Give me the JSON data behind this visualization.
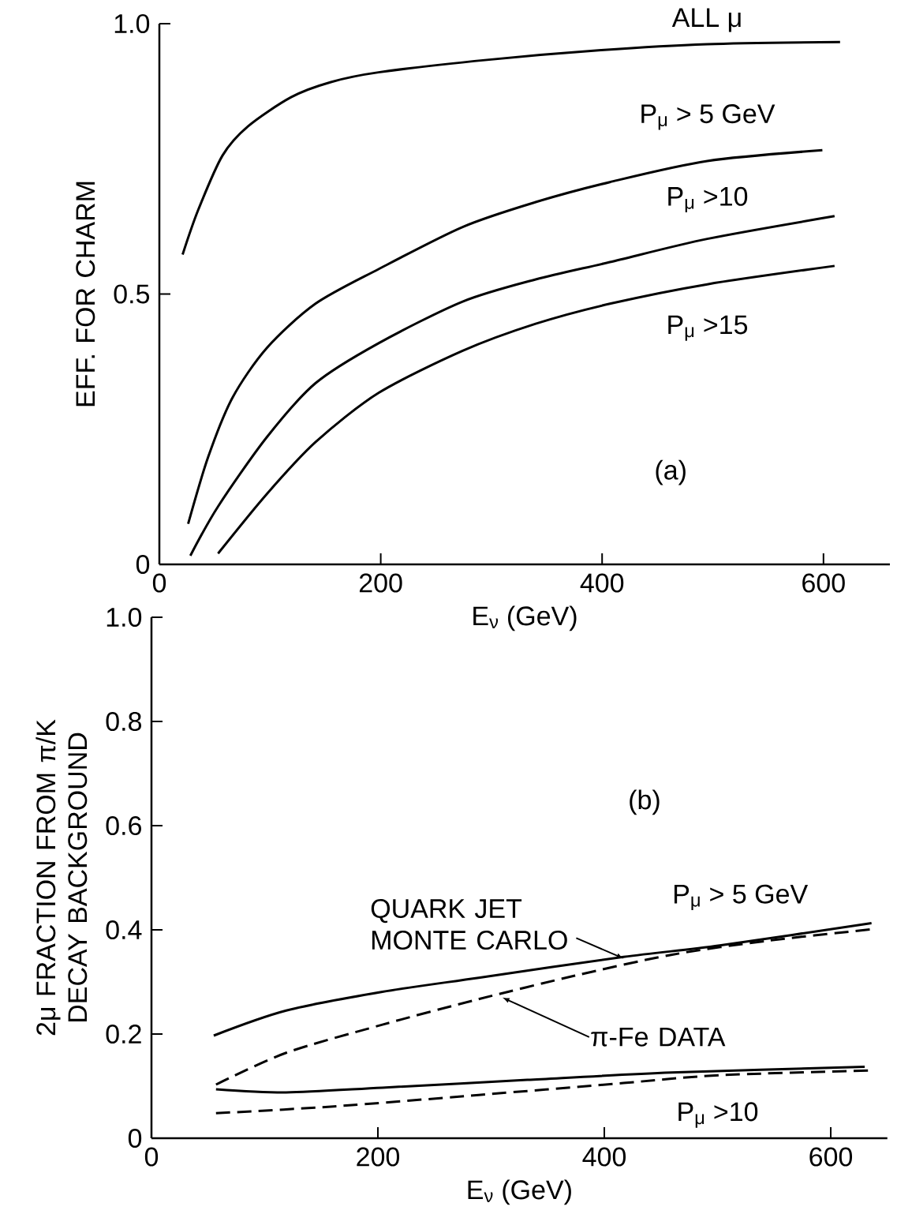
{
  "chart_data": [
    {
      "type": "line",
      "xlabel": "E$_{ν}$ (GeV)",
      "ylabel": "EFF. FOR CHARM",
      "xlim": [
        0,
        660
      ],
      "ylim": [
        0,
        1
      ],
      "xticks": [
        0,
        200,
        400,
        600
      ],
      "yticks": [
        0,
        0.5,
        {
          "value": 1,
          "label": "1.0"
        }
      ],
      "annotations": [
        "(a)"
      ],
      "series": [
        {
          "name": "ALL μ",
          "color": "#000000",
          "x": [
            21,
            35,
            57,
            80,
            119,
            155,
            198,
            296,
            399,
            495,
            615
          ],
          "values": [
            0.573,
            0.655,
            0.756,
            0.81,
            0.864,
            0.892,
            0.91,
            0.933,
            0.951,
            0.962,
            0.966
          ]
        },
        {
          "name": "P$_{μ}$ > 5 GeV",
          "color": "#000000",
          "x": [
            26,
            44,
            66,
            97,
            141,
            198,
            274,
            340,
            407,
            495,
            599
          ],
          "values": [
            0.075,
            0.198,
            0.308,
            0.4,
            0.482,
            0.546,
            0.624,
            0.67,
            0.707,
            0.746,
            0.766
          ]
        },
        {
          "name": "P$_{μ}$ >10",
          "color": "#000000",
          "x": [
            28,
            53,
            97,
            141,
            198,
            274,
            340,
            407,
            495,
            610
          ],
          "values": [
            0.016,
            0.107,
            0.235,
            0.335,
            0.409,
            0.486,
            0.527,
            0.559,
            0.602,
            0.644
          ]
        },
        {
          "name": "P$_{μ}$ >15",
          "color": "#000000",
          "x": [
            53,
            97,
            141,
            198,
            274,
            340,
            407,
            495,
            610
          ],
          "values": [
            0.02,
            0.13,
            0.226,
            0.317,
            0.395,
            0.445,
            0.482,
            0.518,
            0.552
          ]
        }
      ]
    },
    {
      "type": "line",
      "xlabel": "E$_{ν}$ (GeV)",
      "ylabel": "2μ FRACTION FROM π/K DECAY BACKGROUND",
      "xlim": [
        0,
        650
      ],
      "ylim": [
        0,
        1
      ],
      "xticks": [
        0,
        200,
        400,
        600
      ],
      "yticks": [
        0,
        0.2,
        0.4,
        0.6,
        0.8,
        {
          "value": 1,
          "label": "1.0"
        }
      ],
      "annotations": [
        {
          "text": "QUARK JET MONTE CARLO",
          "x": 417,
          "y": 0.345
        },
        {
          "text": "π-Fe DATA",
          "x": 310,
          "y": 0.27
        },
        {
          "text": "P$_{μ}$ > 5 GeV",
          "x": 520,
          "y": 0.375
        },
        {
          "text": "P$_{μ}$ >10",
          "x": 500,
          "y": 0.12
        },
        "(b)"
      ],
      "series": [
        {
          "color": "#000000",
          "line_style": "solid",
          "x": [
            55,
            119,
            204,
            289,
            417,
            502,
            636
          ],
          "values": [
            0.197,
            0.245,
            0.281,
            0.308,
            0.348,
            0.37,
            0.413
          ]
        },
        {
          "color": "#000000",
          "line_style": "dashed",
          "x": [
            57,
            119,
            204,
            289,
            374,
            459,
            544,
            636
          ],
          "values": [
            0.103,
            0.164,
            0.218,
            0.267,
            0.312,
            0.352,
            0.379,
            0.401
          ]
        },
        {
          "color": "#000000",
          "line_style": "solid",
          "x": [
            57,
            119,
            204,
            332,
            459,
            630
          ],
          "values": [
            0.094,
            0.088,
            0.097,
            0.112,
            0.126,
            0.137
          ]
        },
        {
          "color": "#000000",
          "line_style": "dashed",
          "x": [
            57,
            161,
            289,
            417,
            502,
            636
          ],
          "values": [
            0.048,
            0.061,
            0.083,
            0.106,
            0.121,
            0.13
          ]
        }
      ]
    }
  ]
}
